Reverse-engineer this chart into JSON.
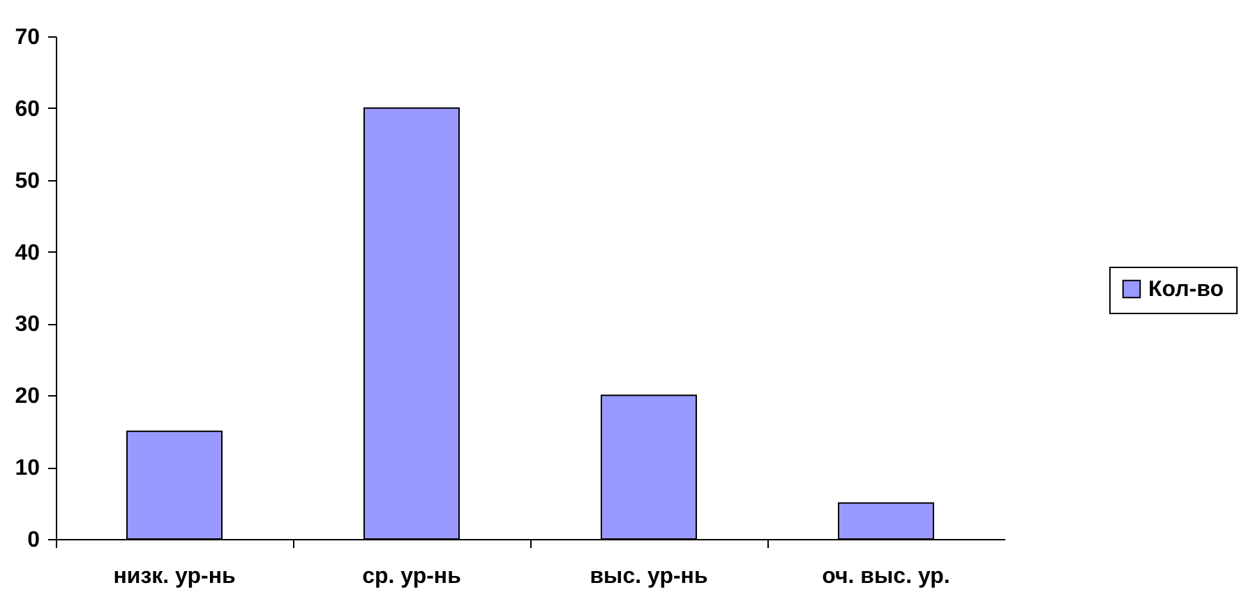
{
  "chart_data": {
    "type": "bar",
    "categories": [
      "низк. ур-нь",
      "ср. ур-нь",
      "выс. ур-нь",
      "оч. выс. ур."
    ],
    "series": [
      {
        "name": "Кол-во",
        "color": "#9999ff",
        "values": [
          15,
          60,
          20,
          5
        ]
      }
    ],
    "ylim": [
      0,
      70
    ],
    "yticks": [
      0,
      10,
      20,
      30,
      40,
      50,
      60,
      70
    ],
    "grid": false,
    "legend": "right"
  }
}
